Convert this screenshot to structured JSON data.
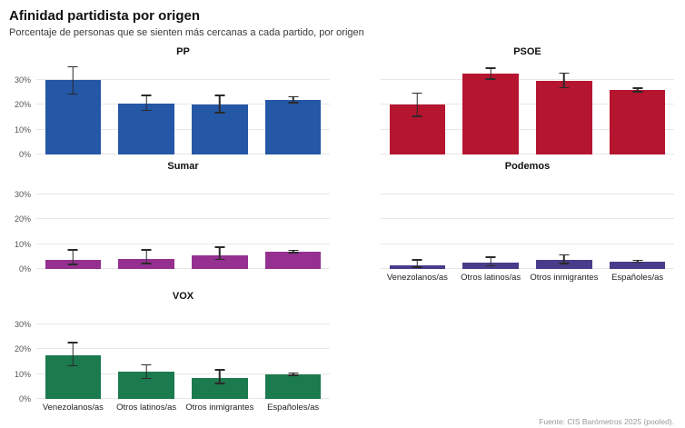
{
  "header": {
    "title": "Afinidad partidista por origen",
    "subtitle": "Porcentaje de personas que se sienten más cercanas a cada partido, por origen"
  },
  "footer": {
    "source": "Fuente: CIS Barómetros 2025 (pooled)."
  },
  "chart_data": {
    "type": "bar",
    "title": "Afinidad partidista por origen",
    "subtitle": "Porcentaje de personas que se sienten más cercanas a cada partido, por origen",
    "categories": [
      "Venezolanos/as",
      "Otros latinos/as",
      "Otros inmigrantes",
      "Españoles/as"
    ],
    "ylim": [
      0,
      38
    ],
    "yticks": [
      0,
      10,
      20,
      30
    ],
    "ytick_format": "percent",
    "grid": "horizontal",
    "error_bars": true,
    "panels": [
      {
        "title": "PP",
        "color": "#2457A5",
        "values": [
          30,
          20.5,
          20,
          22
        ],
        "ci_low": [
          24,
          17.5,
          16.5,
          20.5
        ],
        "ci_high": [
          35.5,
          24,
          24,
          23.5
        ],
        "show_y": true,
        "show_x": false
      },
      {
        "title": "PSOE",
        "color": "#B5152F",
        "values": [
          20,
          32.5,
          29.5,
          26
        ],
        "ci_low": [
          15,
          30,
          26.5,
          25
        ],
        "ci_high": [
          25,
          35,
          33,
          27
        ],
        "show_y": false,
        "show_x": false
      },
      {
        "title": "Sumar",
        "color": "#953090",
        "values": [
          3.5,
          4,
          5.5,
          7
        ],
        "ci_low": [
          1.5,
          2,
          3.5,
          6.3
        ],
        "ci_high": [
          8,
          8,
          9,
          7.8
        ],
        "show_y": true,
        "show_x": false
      },
      {
        "title": "Podemos",
        "color": "#483D8B",
        "values": [
          1.5,
          2.5,
          3.5,
          3
        ],
        "ci_low": [
          0.5,
          1,
          2,
          2.5
        ],
        "ci_high": [
          4,
          5,
          6,
          3.7
        ],
        "show_y": false,
        "show_x": true
      },
      {
        "title": "VOX",
        "color": "#1B7A4E",
        "values": [
          17.5,
          11,
          8.5,
          10
        ],
        "ci_low": [
          13,
          8,
          6,
          9.3
        ],
        "ci_high": [
          23,
          14,
          12,
          10.7
        ],
        "show_y": true,
        "show_x": true
      }
    ]
  }
}
